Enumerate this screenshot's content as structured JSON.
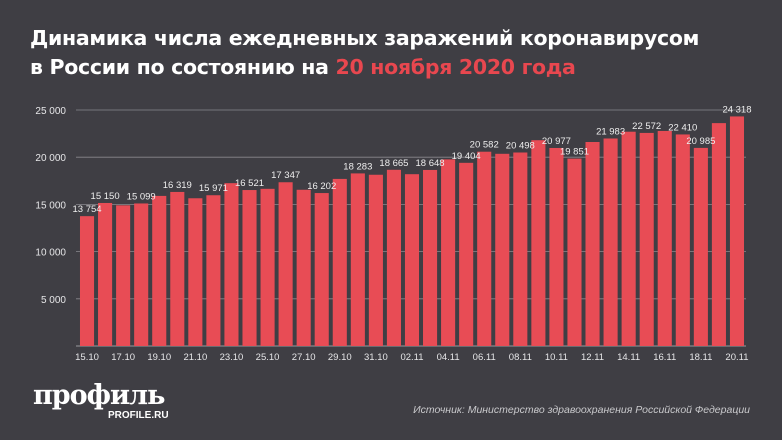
{
  "title": {
    "line1": "Динамика числа ежедневных заражений коронавирусом",
    "line2_prefix": "в России по состоянию на ",
    "line2_highlight": "20 ноября 2020 года"
  },
  "colors": {
    "background": "#3f3e44",
    "bar": "#e84c55",
    "highlight": "#e8474f",
    "text": "#ffffff"
  },
  "chart_data": {
    "type": "bar",
    "title": "Динамика числа ежедневных заражений коронавирусом в России по состоянию на 20 ноября 2020 года",
    "xlabel": "",
    "ylabel": "",
    "ylim": [
      0,
      25000
    ],
    "yticks": [
      5000,
      10000,
      15000,
      20000,
      25000
    ],
    "ytick_labels": [
      "5 000",
      "10 000",
      "15 000",
      "20 000",
      "25 000"
    ],
    "grid": true,
    "categories": [
      "15.10",
      "16.10",
      "17.10",
      "18.10",
      "19.10",
      "20.10",
      "21.10",
      "22.10",
      "23.10",
      "24.10",
      "25.10",
      "26.10",
      "27.10",
      "28.10",
      "29.10",
      "30.10",
      "31.10",
      "01.11",
      "02.11",
      "03.11",
      "04.11",
      "05.11",
      "06.11",
      "07.11",
      "08.11",
      "09.11",
      "10.11",
      "11.11",
      "12.11",
      "13.11",
      "14.11",
      "15.11",
      "16.11",
      "17.11",
      "18.11",
      "19.11",
      "20.11"
    ],
    "xtick_labels": [
      "15.10",
      "17.10",
      "19.10",
      "21.10",
      "23.10",
      "25.10",
      "27.10",
      "29.10",
      "31.10",
      "02.11",
      "04.11",
      "06.11",
      "08.11",
      "10.11",
      "12.11",
      "14.11",
      "16.11",
      "18.11",
      "20.11"
    ],
    "values": [
      13754,
      15150,
      14900,
      15099,
      15900,
      16319,
      15650,
      15971,
      17250,
      16521,
      16650,
      17347,
      16550,
      16202,
      17700,
      18283,
      18140,
      18665,
      18200,
      18648,
      19770,
      19404,
      20582,
      20360,
      20498,
      21800,
      20977,
      19851,
      21610,
      21983,
      22700,
      22572,
      22780,
      22410,
      20985,
      23610,
      24318
    ],
    "data_labels": [
      "13 754",
      "15 150",
      "",
      "15 099",
      "",
      "16 319",
      "",
      "15 971",
      "",
      "16 521",
      "",
      "17 347",
      "",
      "16 202",
      "",
      "18 283",
      "",
      "18 665",
      "",
      "18 648",
      "",
      "19 404",
      "20 582",
      "",
      "20 498",
      "",
      "20 977",
      "19 851",
      "",
      "21 983",
      "",
      "22 572",
      "",
      "22 410",
      "20 985",
      "",
      "24 318"
    ]
  },
  "logo": {
    "main": "профиль",
    "sub": "PROFILE.RU"
  },
  "source": "Источник: Министерство здравоохранения Российской Федерации"
}
